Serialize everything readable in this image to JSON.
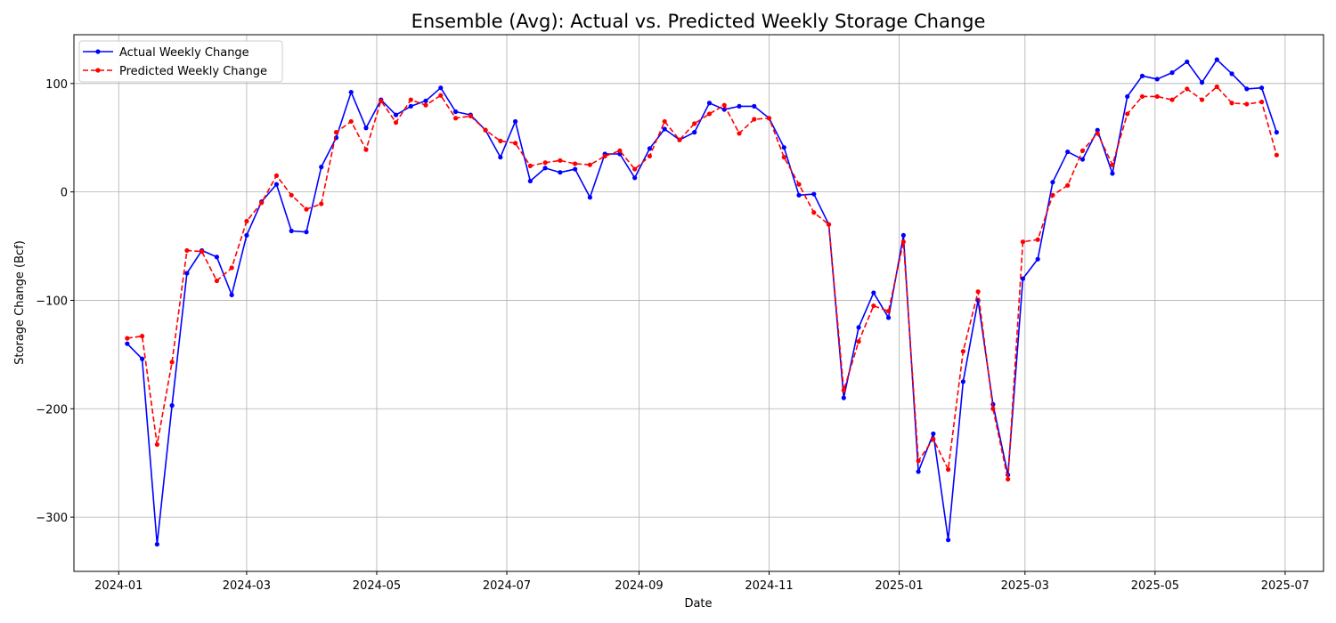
{
  "chart_data": {
    "type": "line",
    "title": "Ensemble (Avg): Actual vs. Predicted Weekly Storage Change",
    "xlabel": "Date",
    "ylabel": "Storage Change (Bcf)",
    "x_tick_labels": [
      "2024-01",
      "2024-03",
      "2024-05",
      "2024-07",
      "2024-09",
      "2024-11",
      "2025-01",
      "2025-03",
      "2025-05",
      "2025-07"
    ],
    "y_ticks": [
      -300,
      -200,
      -100,
      0,
      100
    ],
    "ylim": [
      -350,
      145
    ],
    "grid": true,
    "legend_position": "top-left",
    "x": [
      "2024-01-05",
      "2024-01-12",
      "2024-01-19",
      "2024-01-26",
      "2024-02-02",
      "2024-02-09",
      "2024-02-16",
      "2024-02-23",
      "2024-03-01",
      "2024-03-08",
      "2024-03-15",
      "2024-03-22",
      "2024-03-29",
      "2024-04-05",
      "2024-04-12",
      "2024-04-19",
      "2024-04-26",
      "2024-05-03",
      "2024-05-10",
      "2024-05-17",
      "2024-05-24",
      "2024-05-31",
      "2024-06-07",
      "2024-06-14",
      "2024-06-21",
      "2024-06-28",
      "2024-07-05",
      "2024-07-12",
      "2024-07-19",
      "2024-07-26",
      "2024-08-02",
      "2024-08-09",
      "2024-08-16",
      "2024-08-23",
      "2024-08-30",
      "2024-09-06",
      "2024-09-13",
      "2024-09-20",
      "2024-09-27",
      "2024-10-04",
      "2024-10-11",
      "2024-10-18",
      "2024-10-25",
      "2024-11-01",
      "2024-11-08",
      "2024-11-15",
      "2024-11-22",
      "2024-11-29",
      "2024-12-06",
      "2024-12-13",
      "2024-12-20",
      "2024-12-27",
      "2025-01-03",
      "2025-01-10",
      "2025-01-17",
      "2025-01-24",
      "2025-01-31",
      "2025-02-07",
      "2025-02-14",
      "2025-02-21",
      "2025-02-28",
      "2025-03-07",
      "2025-03-14",
      "2025-03-21",
      "2025-03-28",
      "2025-04-04",
      "2025-04-11",
      "2025-04-18",
      "2025-04-25",
      "2025-05-02",
      "2025-05-09",
      "2025-05-16",
      "2025-05-23",
      "2025-05-30",
      "2025-06-06",
      "2025-06-13",
      "2025-06-20",
      "2025-06-27"
    ],
    "series": [
      {
        "name": "Actual Weekly Change",
        "color": "#0000ff",
        "style": "solid",
        "values": [
          -140,
          -154,
          -325,
          -197,
          -75,
          -54,
          -60,
          -95,
          -40,
          -9,
          7,
          -36,
          -37,
          23,
          50,
          92,
          59,
          85,
          71,
          79,
          84,
          96,
          74,
          71,
          57,
          32,
          65,
          10,
          22,
          18,
          21,
          -5,
          35,
          35,
          13,
          40,
          58,
          48,
          55,
          82,
          76,
          79,
          79,
          68,
          41,
          -3,
          -2,
          -30,
          -190,
          -125,
          -93,
          -116,
          -40,
          -258,
          -223,
          -321,
          -175,
          -100,
          -196,
          -261,
          -80,
          -62,
          9,
          37,
          30,
          57,
          17,
          88,
          107,
          104,
          110,
          120,
          101,
          122,
          109,
          95,
          96,
          55
        ]
      },
      {
        "name": "Predicted Weekly Change",
        "color": "#ff0000",
        "style": "dashed",
        "values": [
          -135,
          -133,
          -233,
          -157,
          -54,
          -55,
          -82,
          -70,
          -27,
          -10,
          15,
          -3,
          -16,
          -11,
          55,
          65,
          39,
          84,
          64,
          85,
          80,
          89,
          68,
          70,
          57,
          47,
          45,
          24,
          27,
          29,
          26,
          25,
          33,
          38,
          21,
          33,
          65,
          48,
          63,
          72,
          80,
          54,
          67,
          68,
          32,
          7,
          -19,
          -30,
          -183,
          -138,
          -105,
          -110,
          -46,
          -248,
          -228,
          -256,
          -147,
          -92,
          -200,
          -265,
          -46,
          -44,
          -3,
          6,
          38,
          54,
          25,
          72,
          88,
          88,
          85,
          95,
          85,
          97,
          82,
          81,
          83,
          34
        ]
      }
    ]
  }
}
